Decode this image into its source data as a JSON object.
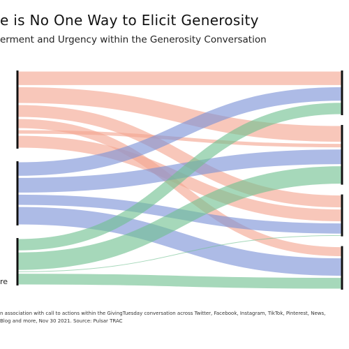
{
  "title": "e is No One Way to Elicit Generosity",
  "subtitle": "erment and Urgency within the Generosity Conversation",
  "chart_data": {
    "type": "sankey",
    "colors": {
      "salmon": "#f4a58f",
      "blue": "#7b92d6",
      "green": "#70c08f",
      "node": "#111111"
    },
    "left_nodes": [
      {
        "id": "L1",
        "label": "",
        "color": "salmon",
        "value": 140
      },
      {
        "id": "L2",
        "label": "",
        "color": "blue",
        "value": 115
      },
      {
        "id": "L3",
        "label": "re",
        "color": "green",
        "value": 85
      }
    ],
    "right_nodes": [
      {
        "id": "R1",
        "label": "",
        "value": 80
      },
      {
        "id": "R2",
        "label": "",
        "value": 107
      },
      {
        "id": "R3",
        "label": "",
        "value": 75
      },
      {
        "id": "R4",
        "label": "",
        "value": 78
      }
    ],
    "flows": [
      {
        "source": "L1",
        "target": "R1",
        "value": 28,
        "color": "salmon"
      },
      {
        "source": "L1",
        "target": "R2",
        "value": 32,
        "color": "salmon"
      },
      {
        "source": "L1",
        "target": "R3",
        "value": 25,
        "color": "salmon"
      },
      {
        "source": "L1",
        "target": "R4",
        "value": 20,
        "color": "salmon"
      },
      {
        "source": "L1",
        "target": "R2",
        "value": 10,
        "color": "salmon"
      },
      {
        "source": "L1",
        "target": "R3",
        "value": 25,
        "color": "salmon"
      },
      {
        "source": "L2",
        "target": "R1",
        "value": 28,
        "color": "blue"
      },
      {
        "source": "L2",
        "target": "R2",
        "value": 30,
        "color": "blue"
      },
      {
        "source": "L2",
        "target": "R3",
        "value": 22,
        "color": "blue"
      },
      {
        "source": "L2",
        "target": "R4",
        "value": 35,
        "color": "blue"
      },
      {
        "source": "L3",
        "target": "R1",
        "value": 24,
        "color": "green"
      },
      {
        "source": "L3",
        "target": "R2",
        "value": 35,
        "color": "green"
      },
      {
        "source": "L3",
        "target": "R3",
        "value": 3,
        "color": "green"
      },
      {
        "source": "L3",
        "target": "R4",
        "value": 23,
        "color": "green"
      }
    ]
  },
  "footnote": {
    "line1": "n association with call to actions within the GivingTuesday conversation across Twitter, Facebook, Instagram, TikTok, Pinterest, News,",
    "line2": "Blog and more, Nov 30 2021. Source: Pulsar TRAC"
  }
}
